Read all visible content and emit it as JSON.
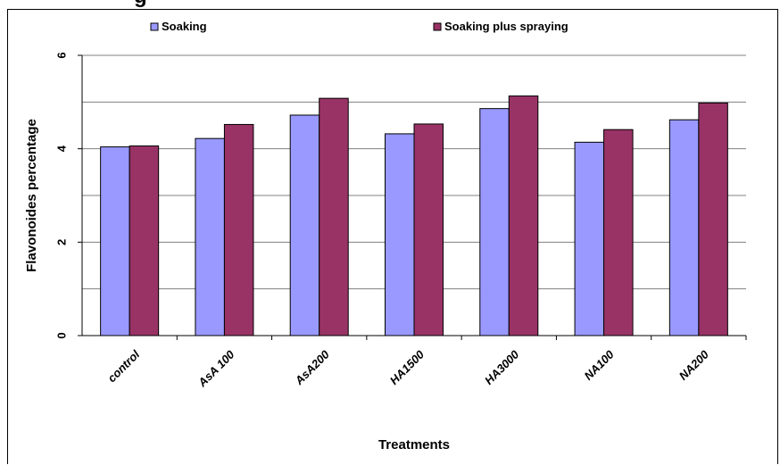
{
  "chart_data": {
    "type": "bar",
    "title": "",
    "title_fragment": "g",
    "xlabel": "Treatments",
    "ylabel": "Flavonoides percentage",
    "ylim": [
      0,
      6
    ],
    "yticks": [
      "0",
      "2",
      "4",
      "6"
    ],
    "grid": true,
    "legend_position": "top",
    "categories": [
      "control",
      "AsA 100",
      "AsA200",
      "HA1500",
      "HA3000",
      "NA100",
      "NA200"
    ],
    "series": [
      {
        "name": "Soaking",
        "color": "#9999ff",
        "values": [
          4.04,
          4.22,
          4.72,
          4.32,
          4.86,
          4.14,
          4.62
        ]
      },
      {
        "name": "Soaking plus spraying",
        "color": "#993366",
        "values": [
          4.06,
          4.52,
          5.08,
          4.53,
          5.13,
          4.41,
          4.98
        ]
      }
    ]
  }
}
